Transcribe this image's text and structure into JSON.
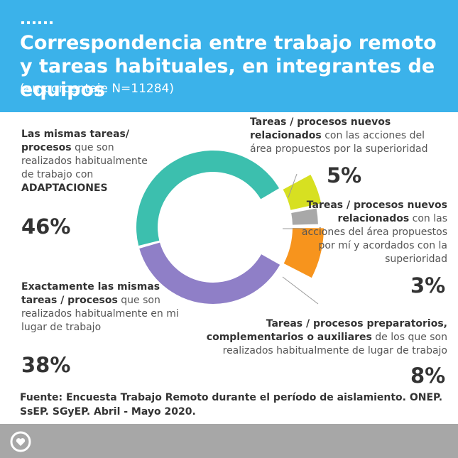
{
  "header": {
    "title": "Correspondencia entre trabajo remoto y tareas habituales, en integrantes de equipos",
    "subtitle": "(en porcentaje N=11284)"
  },
  "chart_data": {
    "type": "pie",
    "title": "Correspondencia entre trabajo remoto y tareas habituales, en integrantes de equipos",
    "subtitle": "(en porcentaje N=11284)",
    "slices": [
      {
        "label_bold": "Las mismas tareas/ procesos",
        "label_rest": " que son realizados habitualmente de trabajo con ",
        "label_bold2": "ADAPTACIONES",
        "value": 46,
        "value_label": "46%",
        "color": "#3cbfae"
      },
      {
        "label_bold": "Tareas / procesos nuevos relacionados",
        "label_rest": " con las acciones del área propuestos por la superioridad",
        "value": 5,
        "value_label": "5%",
        "color": "#d7e021"
      },
      {
        "label_bold": "Tareas / procesos nuevos relacionados",
        "label_rest": " con las acciones del área propuestos por mí y acordados con la superioridad",
        "value": 3,
        "value_label": "3%",
        "color": "#a8a8a8"
      },
      {
        "label_bold": "Tareas / procesos preparatorios, complementarios o auxiliares",
        "label_rest": " de los que son realizados habitualmente de  lugar de trabajo",
        "value": 8,
        "value_label": "8%",
        "color": "#f7941d"
      },
      {
        "label_bold": "Exactamente las mismas tareas / procesos",
        "label_rest": " que son realizados habitualmente en mi lugar de trabajo",
        "value": 38,
        "value_label": "38%",
        "color": "#8f7fc7"
      }
    ]
  },
  "source": "Fuente: Encuesta Trabajo Remoto durante el período de aislamiento. ONEP. SsEP. SGyEP. Abril - Mayo 2020.",
  "colors": {
    "header_bg": "#3bb2ea",
    "footer_bg": "#a7a7a7"
  },
  "icons": {
    "footer": "heart-circle-icon"
  }
}
